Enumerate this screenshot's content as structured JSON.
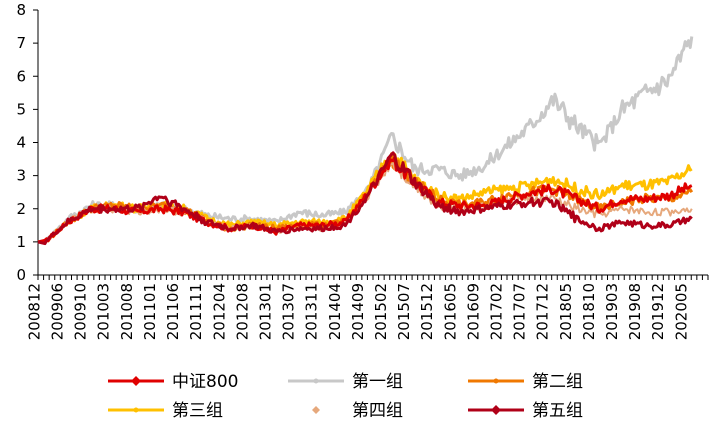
{
  "chart_data": {
    "type": "line",
    "title": "",
    "xlabel": "",
    "ylabel": "",
    "ylim": [
      0,
      8
    ],
    "yticks": [
      0,
      1,
      2,
      3,
      4,
      5,
      6,
      7,
      8
    ],
    "x_tick_labels": [
      "200812",
      "200906",
      "200910",
      "201003",
      "201008",
      "201101",
      "201106",
      "201111",
      "201204",
      "201208",
      "201301",
      "201307",
      "201311",
      "201404",
      "201409",
      "201502",
      "201507",
      "201512",
      "201605",
      "201609",
      "201702",
      "201707",
      "201712",
      "201805",
      "201810",
      "201903",
      "201908",
      "201912",
      "202005"
    ],
    "grid": false,
    "legend_position": "bottom",
    "series": [
      {
        "name": "中证800",
        "color": "#E00000",
        "marker": "diamond",
        "values": [
          1.0,
          1.6,
          2.0,
          2.0,
          1.9,
          2.0,
          1.9,
          1.6,
          1.4,
          1.5,
          1.3,
          1.5,
          1.5,
          1.6,
          2.5,
          3.5,
          2.8,
          2.2,
          2.1,
          2.1,
          2.3,
          2.5,
          2.6,
          2.3,
          2.0,
          2.3,
          2.3,
          2.4,
          2.7
        ]
      },
      {
        "name": "第一组",
        "color": "#C8C8C8",
        "marker": "dot",
        "values": [
          1.0,
          1.7,
          2.1,
          2.1,
          2.0,
          2.1,
          2.0,
          1.8,
          1.7,
          1.7,
          1.6,
          1.9,
          1.8,
          1.9,
          2.6,
          4.2,
          3.2,
          3.2,
          3.0,
          3.3,
          3.9,
          4.5,
          5.3,
          4.5,
          3.9,
          5.0,
          5.5,
          5.9,
          7.2
        ]
      },
      {
        "name": "第二组",
        "color": "#F07800",
        "marker": "dot",
        "values": [
          1.0,
          1.6,
          2.0,
          2.1,
          2.0,
          2.1,
          2.0,
          1.6,
          1.4,
          1.5,
          1.4,
          1.5,
          1.5,
          1.6,
          2.5,
          3.5,
          2.8,
          2.3,
          2.1,
          2.2,
          2.4,
          2.5,
          2.6,
          2.3,
          2.0,
          2.2,
          2.3,
          2.3,
          2.5
        ]
      },
      {
        "name": "第三组",
        "color": "#FFC000",
        "marker": "dot",
        "values": [
          1.0,
          1.6,
          2.0,
          2.1,
          2.0,
          2.1,
          2.0,
          1.7,
          1.5,
          1.6,
          1.5,
          1.6,
          1.6,
          1.7,
          2.6,
          3.7,
          2.9,
          2.4,
          2.3,
          2.5,
          2.6,
          2.7,
          2.9,
          2.6,
          2.4,
          2.7,
          2.7,
          2.8,
          3.2
        ]
      },
      {
        "name": "第四组",
        "color": "#E6A87C",
        "marker": "dot",
        "values": [
          1.0,
          1.6,
          2.0,
          2.0,
          1.9,
          2.0,
          1.9,
          1.6,
          1.4,
          1.5,
          1.3,
          1.5,
          1.4,
          1.5,
          2.4,
          3.4,
          2.7,
          2.1,
          2.0,
          2.1,
          2.2,
          2.3,
          2.3,
          2.0,
          1.8,
          2.0,
          1.9,
          1.9,
          2.0
        ]
      },
      {
        "name": "第五组",
        "color": "#B00018",
        "marker": "diamond",
        "values": [
          1.0,
          1.6,
          2.0,
          2.0,
          2.0,
          2.4,
          2.0,
          1.6,
          1.4,
          1.5,
          1.3,
          1.4,
          1.4,
          1.5,
          2.4,
          3.6,
          2.8,
          2.1,
          1.9,
          2.0,
          2.1,
          2.2,
          2.2,
          1.7,
          1.4,
          1.6,
          1.5,
          1.5,
          1.7
        ]
      }
    ]
  }
}
